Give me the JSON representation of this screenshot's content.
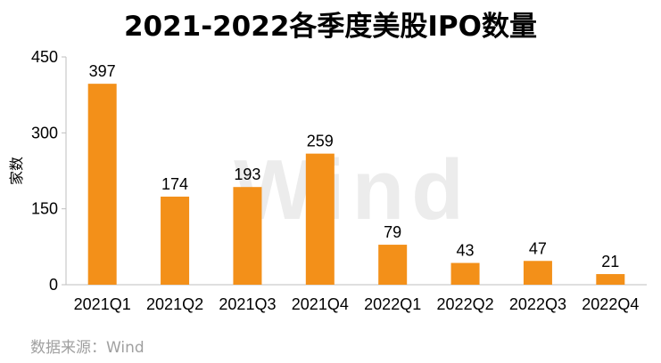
{
  "chart_data": {
    "type": "bar",
    "title": "2021-2022各季度美股IPO数量",
    "ylabel": "家数",
    "xlabel": "",
    "categories": [
      "2021Q1",
      "2021Q2",
      "2021Q3",
      "2021Q4",
      "2022Q1",
      "2022Q2",
      "2022Q3",
      "2022Q4"
    ],
    "values": [
      397,
      174,
      193,
      259,
      79,
      43,
      47,
      21
    ],
    "ylim": [
      0,
      450
    ],
    "yticks": [
      "0",
      "150",
      "300",
      "450"
    ],
    "grid": false,
    "bar_color": "#F39019",
    "watermark": "Wind",
    "source": "数据来源：Wind"
  }
}
